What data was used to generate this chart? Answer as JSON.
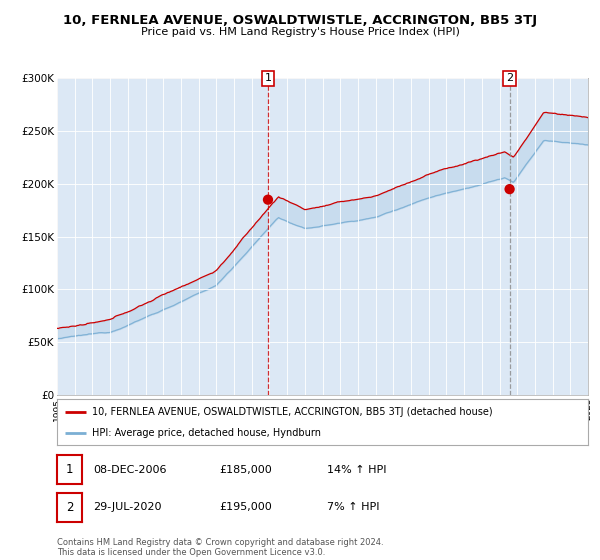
{
  "title": "10, FERNLEA AVENUE, OSWALDTWISTLE, ACCRINGTON, BB5 3TJ",
  "subtitle": "Price paid vs. HM Land Registry's House Price Index (HPI)",
  "legend_house": "10, FERNLEA AVENUE, OSWALDTWISTLE, ACCRINGTON, BB5 3TJ (detached house)",
  "legend_hpi": "HPI: Average price, detached house, Hyndburn",
  "annotation1_label": "1",
  "annotation1_date": "08-DEC-2006",
  "annotation1_price": "£185,000",
  "annotation1_hpi": "14% ↑ HPI",
  "annotation2_label": "2",
  "annotation2_date": "29-JUL-2020",
  "annotation2_price": "£195,000",
  "annotation2_hpi": "7% ↑ HPI",
  "footer": "Contains HM Land Registry data © Crown copyright and database right 2024.\nThis data is licensed under the Open Government Licence v3.0.",
  "house_color": "#cc0000",
  "hpi_color": "#7bafd4",
  "bg_color": "#ffffff",
  "plot_bg_color": "#dce8f5",
  "ylim": [
    0,
    300000
  ],
  "yticks": [
    0,
    50000,
    100000,
    150000,
    200000,
    250000,
    300000
  ],
  "sale1_x": 2006.92,
  "sale1_y": 185000,
  "sale2_x": 2020.57,
  "sale2_y": 195000,
  "xmin": 1995,
  "xmax": 2025
}
